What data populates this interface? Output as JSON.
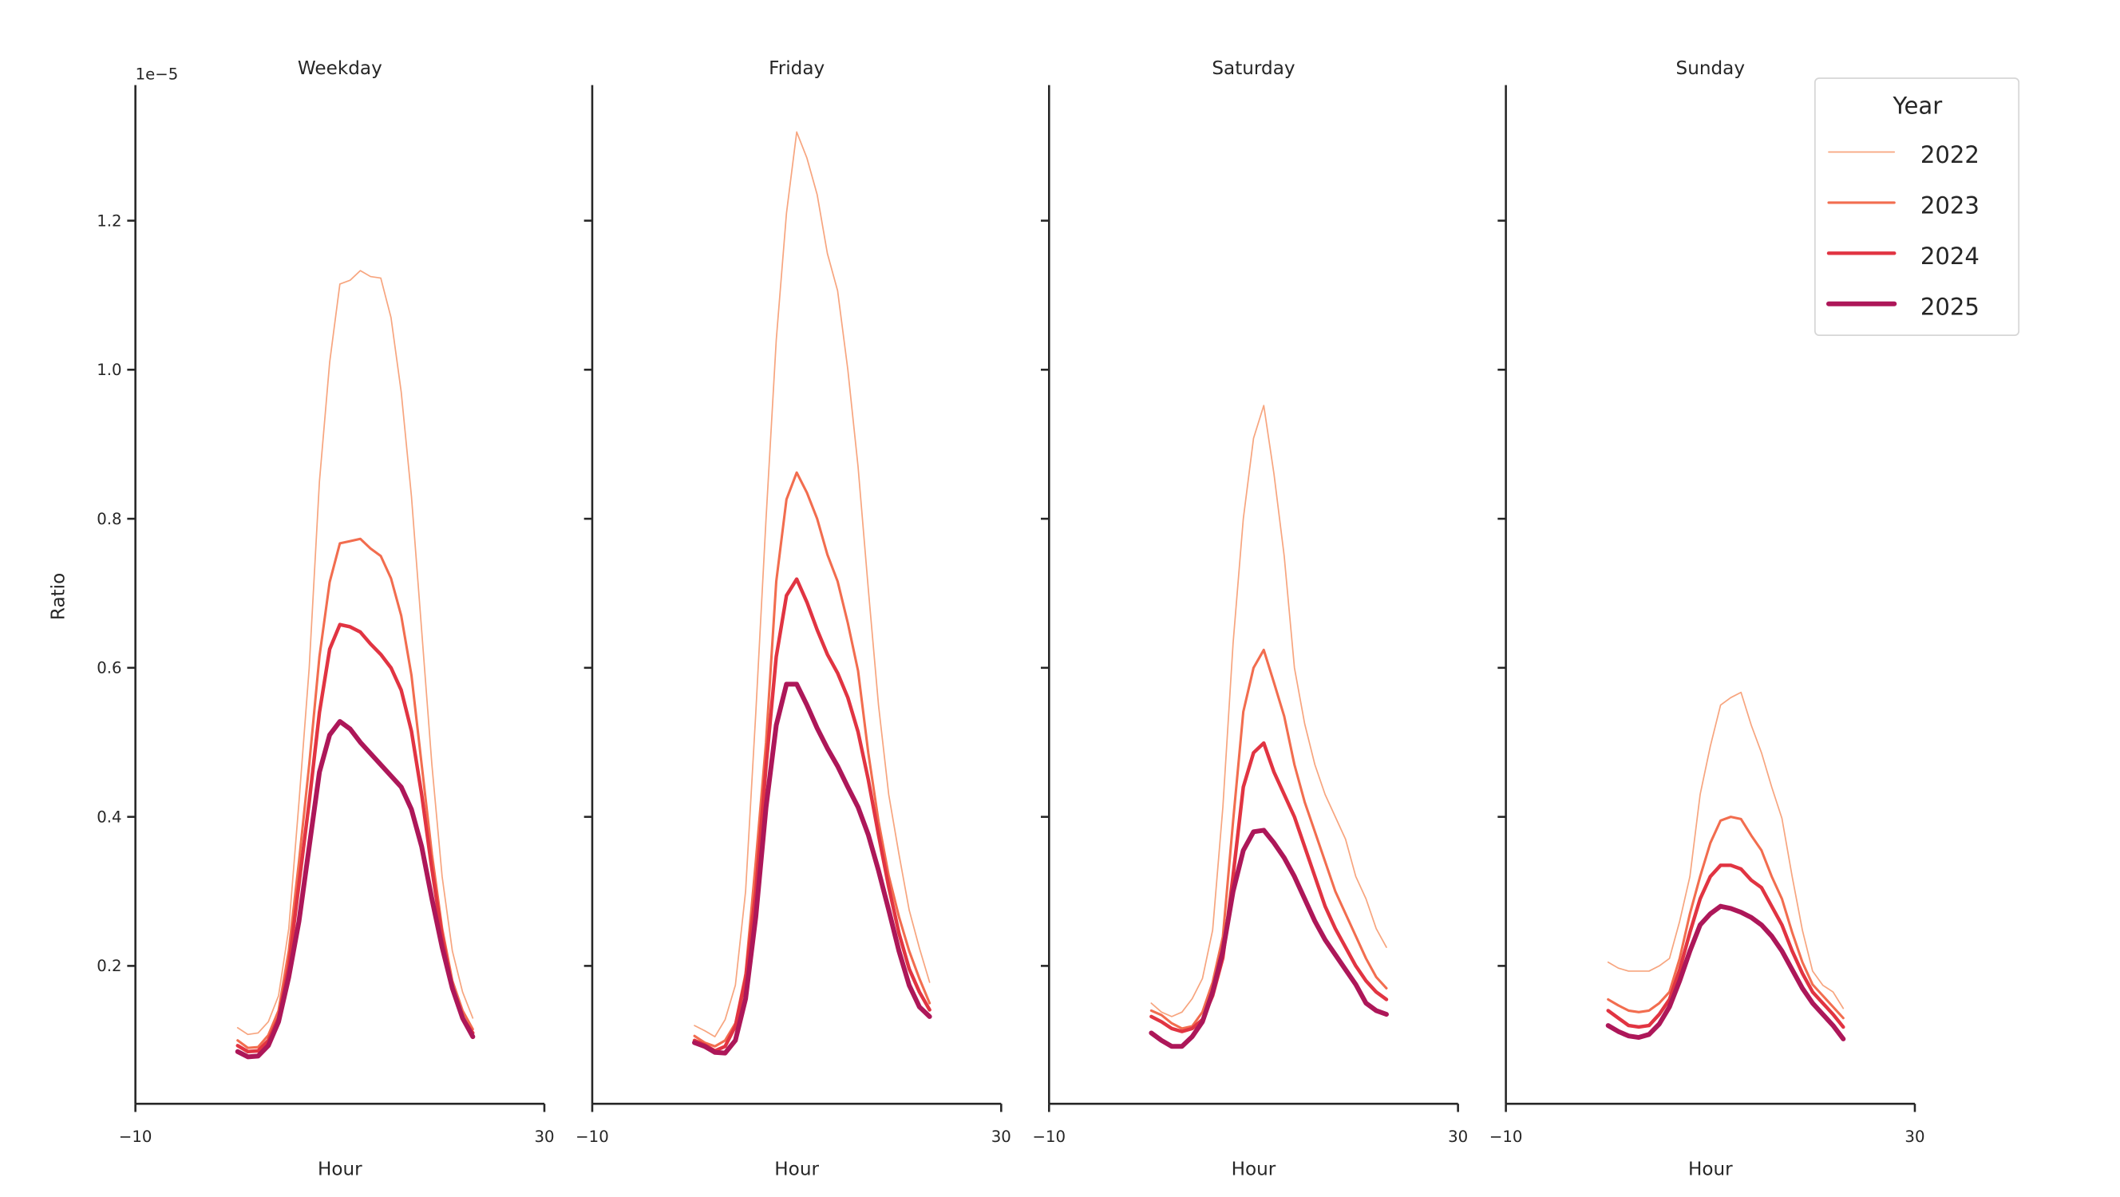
{
  "chart_data": {
    "type": "line",
    "layout": "4 panels, shared y axis",
    "offset_label": "1e−5",
    "ylabel": "Ratio",
    "xlabel": "Hour",
    "xlim": [
      -10,
      30
    ],
    "x_ticks": [
      -10,
      30
    ],
    "x_tick_labels": [
      "−10",
      "30"
    ],
    "ylim": [
      0.015,
      1.382
    ],
    "y_ticks": [
      0.2,
      0.4,
      0.6,
      0.8,
      1.0,
      1.2
    ],
    "y_tick_labels": [
      "0.2",
      "0.4",
      "0.6",
      "0.8",
      "1.0",
      "1.2"
    ],
    "grid": false,
    "legend": {
      "title": "Year",
      "placement": "top-right",
      "entries": [
        "2022",
        "2023",
        "2024",
        "2025"
      ]
    },
    "series_style": [
      {
        "name": "2022",
        "color": "#f7a57f",
        "width": 1.0
      },
      {
        "name": "2023",
        "color": "#f26d4f",
        "width": 1.8
      },
      {
        "name": "2024",
        "color": "#e13442",
        "width": 2.6
      },
      {
        "name": "2025",
        "color": "#ad1759",
        "width": 3.5
      }
    ],
    "x": [
      0,
      1,
      2,
      3,
      4,
      5,
      6,
      7,
      8,
      9,
      10,
      11,
      12,
      13,
      14,
      15,
      16,
      17,
      18,
      19,
      20,
      21,
      22,
      23
    ],
    "panels": [
      {
        "title": "Weekday",
        "series": [
          {
            "name": "2022",
            "values": [
              0.117,
              0.108,
              0.11,
              0.125,
              0.16,
              0.25,
              0.42,
              0.6,
              0.85,
              1.01,
              1.115,
              1.12,
              1.133,
              1.125,
              1.123,
              1.07,
              0.97,
              0.83,
              0.65,
              0.47,
              0.32,
              0.22,
              0.165,
              0.13
            ]
          },
          {
            "name": "2023",
            "values": [
              0.1,
              0.09,
              0.091,
              0.107,
              0.14,
              0.22,
              0.34,
              0.47,
              0.615,
              0.715,
              0.767,
              0.77,
              0.773,
              0.76,
              0.75,
              0.72,
              0.67,
              0.59,
              0.47,
              0.35,
              0.25,
              0.18,
              0.14,
              0.115
            ]
          },
          {
            "name": "2024",
            "values": [
              0.093,
              0.085,
              0.086,
              0.1,
              0.13,
              0.2,
              0.31,
              0.42,
              0.54,
              0.625,
              0.658,
              0.655,
              0.648,
              0.632,
              0.618,
              0.6,
              0.57,
              0.515,
              0.43,
              0.33,
              0.24,
              0.17,
              0.13,
              0.11
            ]
          },
          {
            "name": "2025",
            "values": [
              0.085,
              0.078,
              0.079,
              0.093,
              0.125,
              0.185,
              0.26,
              0.36,
              0.46,
              0.51,
              0.528,
              0.518,
              0.5,
              0.485,
              0.47,
              0.455,
              0.44,
              0.41,
              0.36,
              0.29,
              0.225,
              0.17,
              0.13,
              0.105
            ]
          }
        ]
      },
      {
        "title": "Friday",
        "series": [
          {
            "name": "2022",
            "values": [
              0.12,
              0.113,
              0.105,
              0.128,
              0.174,
              0.3,
              0.54,
              0.8,
              1.04,
              1.21,
              1.319,
              1.284,
              1.235,
              1.156,
              1.106,
              1.0,
              0.87,
              0.706,
              0.55,
              0.43,
              0.35,
              0.275,
              0.224,
              0.178
            ]
          },
          {
            "name": "2023",
            "values": [
              0.106,
              0.097,
              0.092,
              0.1,
              0.123,
              0.19,
              0.34,
              0.5,
              0.716,
              0.826,
              0.862,
              0.835,
              0.8,
              0.752,
              0.716,
              0.66,
              0.596,
              0.486,
              0.394,
              0.321,
              0.266,
              0.22,
              0.183,
              0.15
            ]
          },
          {
            "name": "2024",
            "values": [
              0.1,
              0.094,
              0.086,
              0.092,
              0.119,
              0.183,
              0.3,
              0.468,
              0.615,
              0.697,
              0.719,
              0.688,
              0.651,
              0.618,
              0.593,
              0.56,
              0.514,
              0.45,
              0.376,
              0.306,
              0.244,
              0.196,
              0.165,
              0.141
            ]
          },
          {
            "name": "2025",
            "values": [
              0.097,
              0.092,
              0.084,
              0.083,
              0.1,
              0.156,
              0.266,
              0.413,
              0.523,
              0.578,
              0.578,
              0.55,
              0.519,
              0.492,
              0.468,
              0.44,
              0.413,
              0.376,
              0.328,
              0.275,
              0.22,
              0.174,
              0.145,
              0.132
            ]
          }
        ]
      },
      {
        "title": "Saturday",
        "series": [
          {
            "name": "2022",
            "values": [
              0.15,
              0.138,
              0.132,
              0.138,
              0.156,
              0.183,
              0.248,
              0.413,
              0.633,
              0.8,
              0.908,
              0.952,
              0.86,
              0.75,
              0.6,
              0.525,
              0.47,
              0.43,
              0.4,
              0.37,
              0.32,
              0.29,
              0.25,
              0.225
            ]
          },
          {
            "name": "2023",
            "values": [
              0.14,
              0.134,
              0.123,
              0.116,
              0.119,
              0.138,
              0.178,
              0.239,
              0.394,
              0.541,
              0.6,
              0.624,
              0.58,
              0.535,
              0.47,
              0.42,
              0.38,
              0.34,
              0.3,
              0.27,
              0.24,
              0.21,
              0.185,
              0.17
            ]
          },
          {
            "name": "2024",
            "values": [
              0.132,
              0.125,
              0.116,
              0.112,
              0.116,
              0.128,
              0.16,
              0.211,
              0.321,
              0.44,
              0.486,
              0.499,
              0.46,
              0.43,
              0.4,
              0.36,
              0.32,
              0.28,
              0.25,
              0.225,
              0.2,
              0.18,
              0.165,
              0.155
            ]
          },
          {
            "name": "2025",
            "values": [
              0.11,
              0.1,
              0.092,
              0.092,
              0.105,
              0.125,
              0.165,
              0.22,
              0.3,
              0.355,
              0.38,
              0.382,
              0.365,
              0.345,
              0.32,
              0.29,
              0.26,
              0.235,
              0.215,
              0.195,
              0.175,
              0.15,
              0.14,
              0.135
            ]
          }
        ]
      },
      {
        "title": "Sunday",
        "series": [
          {
            "name": "2022",
            "values": [
              0.205,
              0.197,
              0.193,
              0.193,
              0.193,
              0.2,
              0.21,
              0.26,
              0.32,
              0.43,
              0.495,
              0.55,
              0.56,
              0.567,
              0.523,
              0.486,
              0.44,
              0.398,
              0.32,
              0.248,
              0.193,
              0.174,
              0.165,
              0.143
            ]
          },
          {
            "name": "2023",
            "values": [
              0.155,
              0.147,
              0.14,
              0.138,
              0.14,
              0.15,
              0.165,
              0.21,
              0.27,
              0.32,
              0.365,
              0.395,
              0.4,
              0.397,
              0.375,
              0.355,
              0.32,
              0.29,
              0.245,
              0.205,
              0.175,
              0.16,
              0.145,
              0.13
            ]
          },
          {
            "name": "2024",
            "values": [
              0.14,
              0.13,
              0.12,
              0.118,
              0.12,
              0.135,
              0.155,
              0.195,
              0.245,
              0.29,
              0.32,
              0.335,
              0.335,
              0.33,
              0.315,
              0.305,
              0.28,
              0.255,
              0.22,
              0.19,
              0.165,
              0.15,
              0.135,
              0.118
            ]
          },
          {
            "name": "2025",
            "values": [
              0.12,
              0.112,
              0.106,
              0.104,
              0.108,
              0.122,
              0.145,
              0.18,
              0.22,
              0.255,
              0.27,
              0.28,
              0.277,
              0.272,
              0.265,
              0.255,
              0.24,
              0.22,
              0.195,
              0.17,
              0.15,
              0.135,
              0.12,
              0.102
            ]
          }
        ]
      }
    ]
  }
}
